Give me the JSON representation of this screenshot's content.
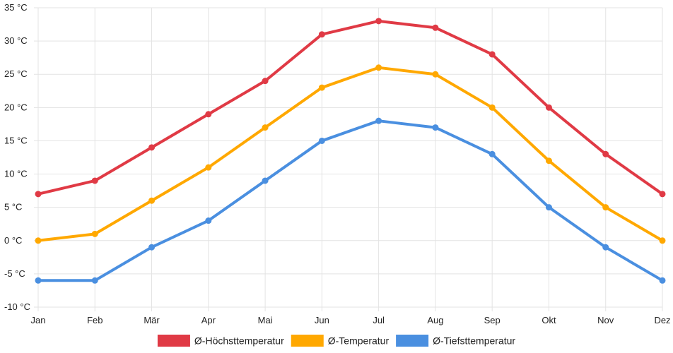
{
  "chart_data": {
    "type": "line",
    "categories": [
      "Jan",
      "Feb",
      "Mär",
      "Apr",
      "Mai",
      "Jun",
      "Jul",
      "Aug",
      "Sep",
      "Okt",
      "Nov",
      "Dez"
    ],
    "series": [
      {
        "name": "Ø-Höchsttemperatur",
        "color": "#e03a45",
        "values": [
          7,
          9,
          14,
          19,
          24,
          31,
          33,
          32,
          28,
          20,
          13,
          7
        ]
      },
      {
        "name": "Ø-Temperatur",
        "color": "#ffa800",
        "values": [
          0,
          1,
          6,
          11,
          17,
          23,
          26,
          25,
          20,
          12,
          5,
          0
        ]
      },
      {
        "name": "Ø-Tiefsttemperatur",
        "color": "#4a8fe0",
        "values": [
          -6,
          -6,
          -1,
          3,
          9,
          15,
          18,
          17,
          13,
          5,
          -1,
          -6
        ]
      }
    ],
    "y_ticks": [
      "-10 °C",
      "-5 °C",
      "0 °C",
      "5 °C",
      "10 °C",
      "15 °C",
      "20 °C",
      "25 °C",
      "30 °C",
      "35 °C"
    ],
    "ylim": [
      -10,
      35
    ],
    "y_step": 5,
    "grid": true,
    "legend_position": "bottom-center"
  }
}
